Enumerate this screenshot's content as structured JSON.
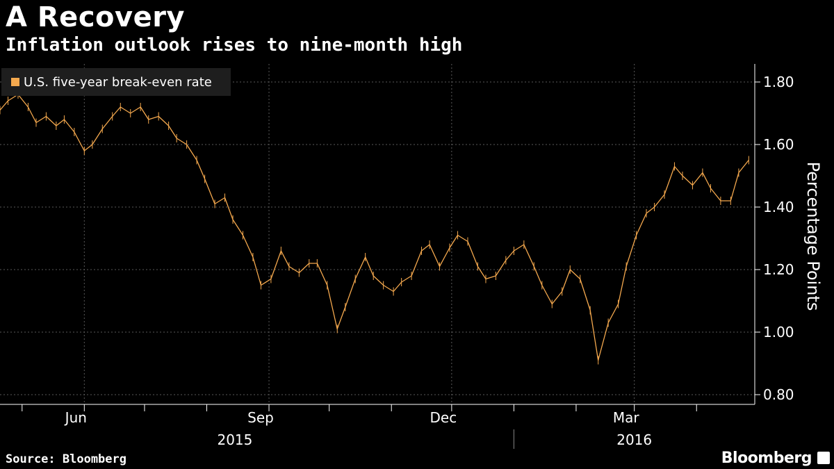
{
  "header": {
    "title": "A Recovery",
    "subtitle": "Inflation outlook rises to nine-month high"
  },
  "footer": {
    "source": "Source: Bloomberg",
    "brand": "Bloomberg"
  },
  "colors": {
    "series": "#f5a94e",
    "background": "#000000",
    "grid": "#5a5a5a"
  },
  "chart_data": {
    "type": "line",
    "title": "A Recovery",
    "subtitle": "Inflation outlook rises to nine-month high",
    "ylabel": "Percentage Points",
    "ylim": [
      0.8,
      1.8
    ],
    "yticks": [
      0.8,
      1.0,
      1.2,
      1.4,
      1.6,
      1.8
    ],
    "ytick_labels": [
      "0.80",
      "1.00",
      "1.20",
      "1.40",
      "1.60",
      "1.80"
    ],
    "xlim": [
      "2015-04-20",
      "2016-04-30"
    ],
    "xtick_labels": [
      {
        "date": "2015-06-01",
        "label": "Jun"
      },
      {
        "date": "2015-09-01",
        "label": "Sep"
      },
      {
        "date": "2015-12-01",
        "label": "Dec"
      },
      {
        "date": "2016-03-01",
        "label": "Mar"
      }
    ],
    "year_labels": [
      {
        "center": "2015-08-15",
        "label": "2015"
      },
      {
        "center": "2016-03-01",
        "label": "2016"
      }
    ],
    "year_divider": "2016-01-01",
    "legend": {
      "position": "top-left",
      "entries": [
        "U.S. five-year break-even rate"
      ]
    },
    "grid": true,
    "series": [
      {
        "name": "U.S. five-year break-even rate",
        "points": [
          [
            "2015-04-20",
            1.71
          ],
          [
            "2015-04-24",
            1.74
          ],
          [
            "2015-04-29",
            1.76
          ],
          [
            "2015-05-04",
            1.72
          ],
          [
            "2015-05-08",
            1.67
          ],
          [
            "2015-05-13",
            1.69
          ],
          [
            "2015-05-18",
            1.66
          ],
          [
            "2015-05-22",
            1.68
          ],
          [
            "2015-05-27",
            1.64
          ],
          [
            "2015-06-01",
            1.58
          ],
          [
            "2015-06-05",
            1.6
          ],
          [
            "2015-06-10",
            1.65
          ],
          [
            "2015-06-15",
            1.69
          ],
          [
            "2015-06-19",
            1.72
          ],
          [
            "2015-06-24",
            1.7
          ],
          [
            "2015-06-29",
            1.72
          ],
          [
            "2015-07-03",
            1.68
          ],
          [
            "2015-07-08",
            1.69
          ],
          [
            "2015-07-13",
            1.66
          ],
          [
            "2015-07-17",
            1.62
          ],
          [
            "2015-07-22",
            1.6
          ],
          [
            "2015-07-27",
            1.55
          ],
          [
            "2015-07-31",
            1.49
          ],
          [
            "2015-08-05",
            1.41
          ],
          [
            "2015-08-10",
            1.43
          ],
          [
            "2015-08-14",
            1.36
          ],
          [
            "2015-08-19",
            1.31
          ],
          [
            "2015-08-24",
            1.24
          ],
          [
            "2015-08-28",
            1.15
          ],
          [
            "2015-09-02",
            1.17
          ],
          [
            "2015-09-07",
            1.26
          ],
          [
            "2015-09-11",
            1.21
          ],
          [
            "2015-09-16",
            1.19
          ],
          [
            "2015-09-21",
            1.22
          ],
          [
            "2015-09-25",
            1.22
          ],
          [
            "2015-09-30",
            1.15
          ],
          [
            "2015-10-05",
            1.01
          ],
          [
            "2015-10-09",
            1.08
          ],
          [
            "2015-10-14",
            1.17
          ],
          [
            "2015-10-19",
            1.24
          ],
          [
            "2015-10-23",
            1.18
          ],
          [
            "2015-10-28",
            1.15
          ],
          [
            "2015-11-02",
            1.13
          ],
          [
            "2015-11-06",
            1.16
          ],
          [
            "2015-11-11",
            1.18
          ],
          [
            "2015-11-16",
            1.26
          ],
          [
            "2015-11-20",
            1.28
          ],
          [
            "2015-11-25",
            1.21
          ],
          [
            "2015-11-30",
            1.27
          ],
          [
            "2015-12-04",
            1.31
          ],
          [
            "2015-12-09",
            1.29
          ],
          [
            "2015-12-14",
            1.21
          ],
          [
            "2015-12-18",
            1.17
          ],
          [
            "2015-12-23",
            1.18
          ],
          [
            "2015-12-28",
            1.23
          ],
          [
            "2016-01-01",
            1.26
          ],
          [
            "2016-01-06",
            1.28
          ],
          [
            "2016-01-11",
            1.21
          ],
          [
            "2016-01-15",
            1.15
          ],
          [
            "2016-01-20",
            1.09
          ],
          [
            "2016-01-25",
            1.13
          ],
          [
            "2016-01-29",
            1.2
          ],
          [
            "2016-02-03",
            1.17
          ],
          [
            "2016-02-08",
            1.07
          ],
          [
            "2016-02-12",
            0.91
          ],
          [
            "2016-02-17",
            1.03
          ],
          [
            "2016-02-22",
            1.09
          ],
          [
            "2016-02-26",
            1.21
          ],
          [
            "2016-03-02",
            1.31
          ],
          [
            "2016-03-07",
            1.38
          ],
          [
            "2016-03-11",
            1.4
          ],
          [
            "2016-03-16",
            1.44
          ],
          [
            "2016-03-21",
            1.53
          ],
          [
            "2016-03-25",
            1.5
          ],
          [
            "2016-03-30",
            1.47
          ],
          [
            "2016-04-04",
            1.51
          ],
          [
            "2016-04-08",
            1.46
          ],
          [
            "2016-04-13",
            1.42
          ],
          [
            "2016-04-18",
            1.42
          ],
          [
            "2016-04-22",
            1.51
          ],
          [
            "2016-04-27",
            1.55
          ]
        ]
      }
    ]
  }
}
